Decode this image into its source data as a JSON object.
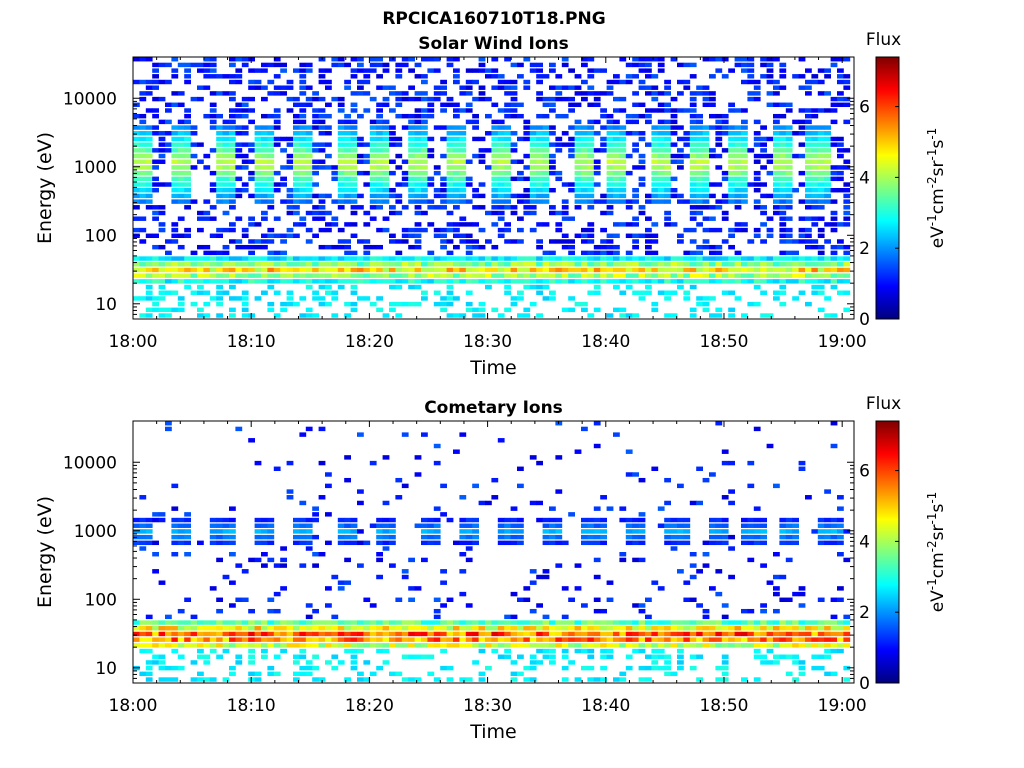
{
  "figure_title": "RPCICA160710T18.PNG",
  "colormap": [
    "#00007f",
    "#0000ff",
    "#007fff",
    "#00ffff",
    "#7fff7f",
    "#ffff00",
    "#ff7f00",
    "#ff0000",
    "#7f0000"
  ],
  "chart_data": [
    {
      "type": "heatmap",
      "title": "Solar Wind Ions",
      "xlabel": "Time",
      "ylabel": "Energy (eV)",
      "x_ticks": [
        "18:00",
        "18:10",
        "18:20",
        "18:30",
        "18:40",
        "18:50",
        "19:00"
      ],
      "x_range_minutes": [
        0,
        61
      ],
      "y_scale": "log",
      "y_ticks": [
        "10",
        "100",
        "1000",
        "10000"
      ],
      "y_range": [
        6,
        40000
      ],
      "grid": false,
      "colorbar": {
        "title": "Flux",
        "label": "eV-1cm-2sr-1s-1",
        "ticks": [
          "0",
          "2",
          "4",
          "6"
        ],
        "range": [
          0,
          7.4
        ]
      },
      "low_energy_band": {
        "energy_range": [
          20,
          45
        ],
        "flux": 5
      },
      "pulses": [
        {
          "minute": 0.5,
          "energy_range": [
            300,
            4000
          ],
          "peak_flux": 4
        },
        {
          "minute": 4,
          "energy_range": [
            300,
            4000
          ],
          "peak_flux": 4
        },
        {
          "minute": 8,
          "energy_range": [
            300,
            4000
          ],
          "peak_flux": 4
        },
        {
          "minute": 11,
          "energy_range": [
            300,
            4000
          ],
          "peak_flux": 4
        },
        {
          "minute": 14.5,
          "energy_range": [
            300,
            4000
          ],
          "peak_flux": 4
        },
        {
          "minute": 18,
          "energy_range": [
            300,
            4000
          ],
          "peak_flux": 4
        },
        {
          "minute": 21,
          "energy_range": [
            300,
            4000
          ],
          "peak_flux": 4
        },
        {
          "minute": 24,
          "energy_range": [
            300,
            4000
          ],
          "peak_flux": 4
        },
        {
          "minute": 27.5,
          "energy_range": [
            300,
            4000
          ],
          "peak_flux": 4
        },
        {
          "minute": 31,
          "energy_range": [
            300,
            4000
          ],
          "peak_flux": 4
        },
        {
          "minute": 34.5,
          "energy_range": [
            300,
            4000
          ],
          "peak_flux": 4
        },
        {
          "minute": 38,
          "energy_range": [
            300,
            4000
          ],
          "peak_flux": 4
        },
        {
          "minute": 41,
          "energy_range": [
            300,
            4000
          ],
          "peak_flux": 4
        },
        {
          "minute": 44.5,
          "energy_range": [
            300,
            4000
          ],
          "peak_flux": 4
        },
        {
          "minute": 48,
          "energy_range": [
            300,
            4000
          ],
          "peak_flux": 4
        },
        {
          "minute": 51,
          "energy_range": [
            300,
            4000
          ],
          "peak_flux": 4
        },
        {
          "minute": 55,
          "energy_range": [
            300,
            4000
          ],
          "peak_flux": 4
        },
        {
          "minute": 58,
          "energy_range": [
            300,
            4000
          ],
          "peak_flux": 4
        }
      ]
    },
    {
      "type": "heatmap",
      "title": "Cometary Ions",
      "xlabel": "Time",
      "ylabel": "Energy (eV)",
      "x_ticks": [
        "18:00",
        "18:10",
        "18:20",
        "18:30",
        "18:40",
        "18:50",
        "19:00"
      ],
      "x_range_minutes": [
        0,
        61
      ],
      "y_scale": "log",
      "y_ticks": [
        "10",
        "100",
        "1000",
        "10000"
      ],
      "y_range": [
        6,
        40000
      ],
      "grid": false,
      "colorbar": {
        "title": "Flux",
        "label": "eV-1cm-2sr-1s-1",
        "ticks": [
          "0",
          "2",
          "4",
          "6"
        ],
        "range": [
          0,
          7.4
        ]
      },
      "low_energy_band": {
        "energy_range": [
          18,
          45
        ],
        "flux": 6.3
      },
      "pulses": [
        {
          "minute": 0.5,
          "energy_range": [
            600,
            1500
          ],
          "peak_flux": 2
        },
        {
          "minute": 4,
          "energy_range": [
            600,
            1500
          ],
          "peak_flux": 2
        },
        {
          "minute": 7.5,
          "energy_range": [
            600,
            1500
          ],
          "peak_flux": 2
        },
        {
          "minute": 11,
          "energy_range": [
            600,
            1500
          ],
          "peak_flux": 2
        },
        {
          "minute": 14.5,
          "energy_range": [
            600,
            1500
          ],
          "peak_flux": 2
        },
        {
          "minute": 18,
          "energy_range": [
            600,
            1500
          ],
          "peak_flux": 2
        },
        {
          "minute": 21.5,
          "energy_range": [
            600,
            1500
          ],
          "peak_flux": 2
        },
        {
          "minute": 25,
          "energy_range": [
            600,
            1500
          ],
          "peak_flux": 2
        },
        {
          "minute": 28.5,
          "energy_range": [
            600,
            1500
          ],
          "peak_flux": 2
        },
        {
          "minute": 32,
          "energy_range": [
            600,
            1500
          ],
          "peak_flux": 2
        },
        {
          "minute": 35.5,
          "energy_range": [
            600,
            1500
          ],
          "peak_flux": 2
        },
        {
          "minute": 39,
          "energy_range": [
            600,
            1500
          ],
          "peak_flux": 2
        },
        {
          "minute": 42.5,
          "energy_range": [
            600,
            1500
          ],
          "peak_flux": 2
        },
        {
          "minute": 46,
          "energy_range": [
            600,
            1500
          ],
          "peak_flux": 2
        },
        {
          "minute": 49.5,
          "energy_range": [
            600,
            1500
          ],
          "peak_flux": 2
        },
        {
          "minute": 52.5,
          "energy_range": [
            600,
            1500
          ],
          "peak_flux": 2
        },
        {
          "minute": 55.5,
          "energy_range": [
            600,
            1500
          ],
          "peak_flux": 2
        },
        {
          "minute": 59,
          "energy_range": [
            600,
            1500
          ],
          "peak_flux": 2
        }
      ]
    }
  ]
}
